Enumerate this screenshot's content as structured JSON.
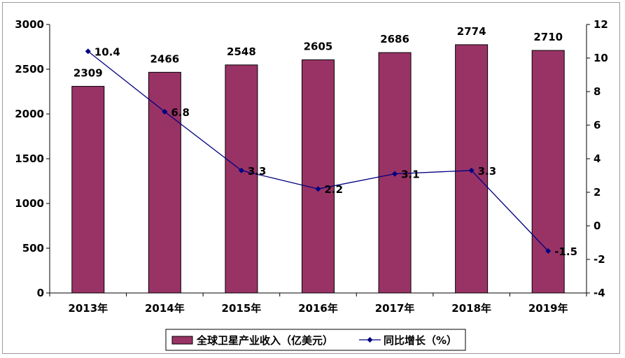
{
  "chart_data": {
    "type": "bar",
    "categories": [
      "2013年",
      "2014年",
      "2015年",
      "2016年",
      "2017年",
      "2018年",
      "2019年"
    ],
    "series": [
      {
        "name": "全球卫星产业收入（亿美元）",
        "type": "bar",
        "axis": "left",
        "color": "#993366",
        "values": [
          2309,
          2466,
          2548,
          2605,
          2686,
          2774,
          2710
        ]
      },
      {
        "name": "同比增长（%）",
        "type": "line",
        "axis": "right",
        "color": "#000080",
        "values": [
          10.4,
          6.8,
          3.3,
          2.2,
          3.1,
          3.3,
          -1.5
        ]
      }
    ],
    "left_axis": {
      "min": 0,
      "max": 3000,
      "step": 500,
      "ticks": [
        "0",
        "500",
        "1000",
        "1500",
        "2000",
        "2500",
        "3000"
      ]
    },
    "right_axis": {
      "min": -4,
      "max": 12,
      "step": 2,
      "ticks": [
        "-4",
        "-2",
        "0",
        "2",
        "4",
        "6",
        "8",
        "10",
        "12"
      ]
    },
    "bar_labels": [
      "2309",
      "2466",
      "2548",
      "2605",
      "2686",
      "2774",
      "2710"
    ],
    "line_labels": [
      "10.4",
      "6.8",
      "3.3",
      "2.2",
      "3.1",
      "3.3",
      "-1.5"
    ],
    "legend_position": "bottom",
    "grid": false
  }
}
